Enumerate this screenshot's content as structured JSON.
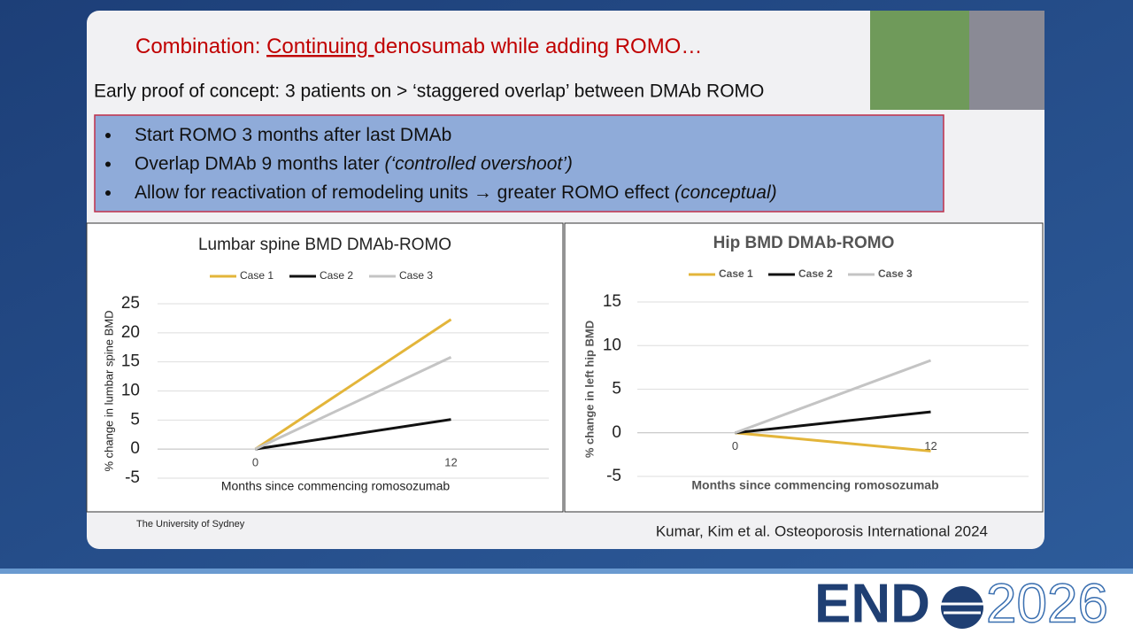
{
  "slide": {
    "title_prefix": "Combination: ",
    "title_underlined": "Continuing ",
    "title_suffix": "denosumab while adding ROMO…",
    "subtitle": "Early proof of concept: 3 patients on > ‘staggered overlap’ between DMAb ROMO",
    "bullets": [
      {
        "text": "Start ROMO 3 months after last DMAb"
      },
      {
        "text": "Overlap DMAb 9 months later ",
        "italic": "(‘controlled overshoot’)"
      },
      {
        "text": "Allow for reactivation of remodeling units → greater ROMO effect ",
        "italic": "(conceptual)"
      }
    ],
    "footer_left": "The University of Sydney",
    "citation": "Kumar, Kim et al. Osteoporosis International 2024"
  },
  "logo": {
    "left": "END",
    "right": "2026"
  },
  "chart_data": [
    {
      "type": "line",
      "title": "Lumbar spine BMD DMAb-ROMO",
      "categories": [
        "0",
        "12"
      ],
      "x_label": "Months since commencing romosozumab",
      "y_label": "% change in lumbar spine BMD",
      "ylim": [
        -5,
        25
      ],
      "yticks": [
        -5,
        0,
        5,
        10,
        15,
        20,
        25
      ],
      "grid": true,
      "legend": "top",
      "series": [
        {
          "name": "Case 1",
          "color": "#e3b53a",
          "values": [
            0,
            22.3
          ]
        },
        {
          "name": "Case 2",
          "color": "#111111",
          "values": [
            0,
            5.1
          ]
        },
        {
          "name": "Case 3",
          "color": "#c4c4c4",
          "values": [
            0,
            15.8
          ]
        }
      ]
    },
    {
      "type": "line",
      "title": "Hip BMD DMAb-ROMO",
      "categories": [
        "0",
        "12"
      ],
      "x_label": "Months since commencing romosozumab",
      "y_label": "% change in left hip BMD",
      "ylim": [
        -5,
        15
      ],
      "yticks": [
        -5,
        0,
        5,
        10,
        15
      ],
      "grid": true,
      "legend": "top",
      "series": [
        {
          "name": "Case 1",
          "color": "#e3b53a",
          "values": [
            0,
            -2.1
          ]
        },
        {
          "name": "Case 2",
          "color": "#111111",
          "values": [
            0,
            2.4
          ]
        },
        {
          "name": "Case 3",
          "color": "#c4c4c4",
          "values": [
            0,
            8.3
          ]
        }
      ]
    }
  ]
}
